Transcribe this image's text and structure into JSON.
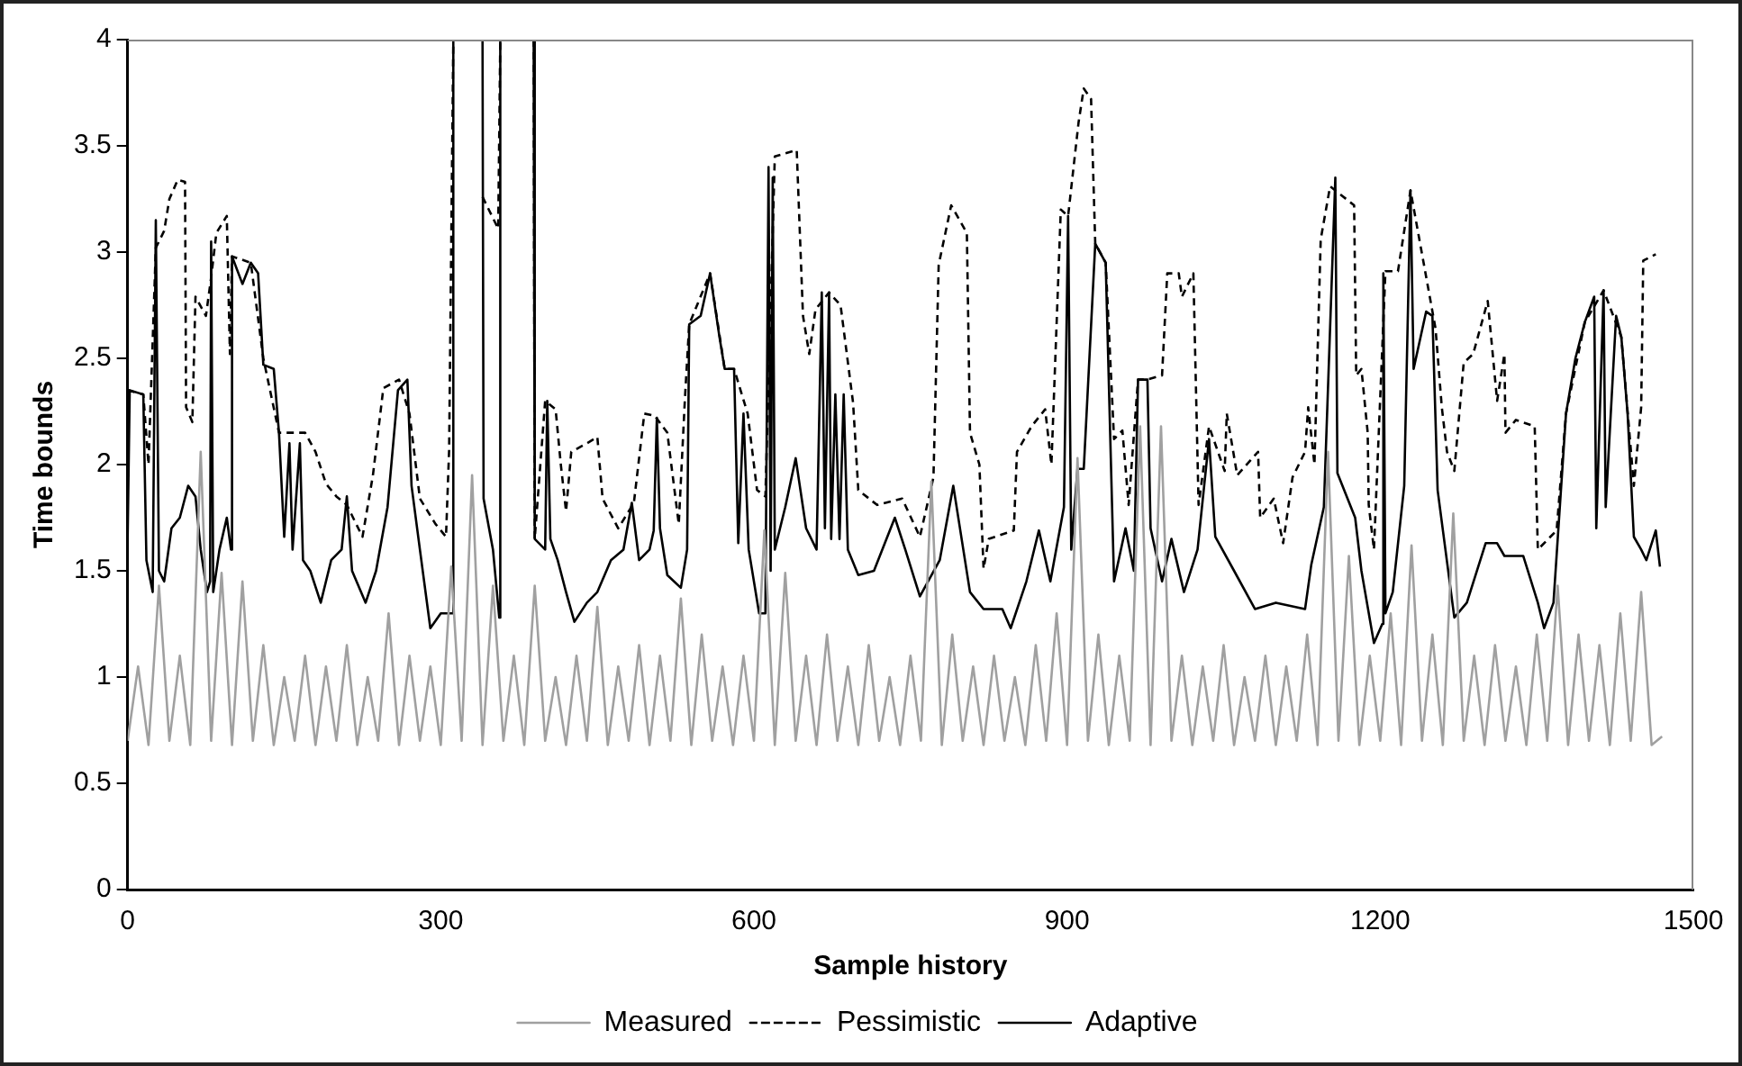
{
  "chart_data": {
    "type": "line",
    "xlabel": "Sample history",
    "ylabel": "Time bounds",
    "xlim": [
      0,
      1500
    ],
    "xticks": [
      0,
      300,
      600,
      900,
      1200,
      1500
    ],
    "ylim": [
      0,
      4
    ],
    "yticks": [
      0,
      0.5,
      1,
      1.5,
      2,
      2.5,
      3,
      3.5,
      4
    ],
    "grid": false,
    "legend": "bottom",
    "marker": "none",
    "series": [
      {
        "name": "Measured",
        "color": "#a0a0a0",
        "line_style": "solid",
        "x": [
          0,
          10,
          20,
          30,
          40,
          50,
          60,
          70,
          80,
          90,
          100,
          110,
          120,
          130,
          140,
          150,
          160,
          170,
          180,
          190,
          200,
          210,
          220,
          230,
          240,
          250,
          260,
          270,
          280,
          290,
          300,
          310,
          320,
          330,
          340,
          350,
          360,
          370,
          380,
          390,
          400,
          410,
          420,
          430,
          440,
          450,
          460,
          470,
          480,
          490,
          500,
          510,
          520,
          530,
          540,
          550,
          560,
          570,
          580,
          590,
          600,
          610,
          620,
          630,
          640,
          650,
          660,
          670,
          680,
          690,
          700,
          710,
          720,
          730,
          740,
          750,
          760,
          770,
          780,
          790,
          800,
          810,
          820,
          830,
          840,
          850,
          860,
          870,
          880,
          890,
          900,
          910,
          920,
          930,
          940,
          950,
          960,
          970,
          980,
          990,
          1000,
          1010,
          1020,
          1030,
          1040,
          1050,
          1060,
          1070,
          1080,
          1090,
          1100,
          1110,
          1120,
          1130,
          1140,
          1150,
          1160,
          1170,
          1180,
          1190,
          1200,
          1210,
          1220,
          1230,
          1240,
          1250,
          1260,
          1270,
          1280,
          1290,
          1300,
          1310,
          1320,
          1330,
          1340,
          1350,
          1360,
          1370,
          1380,
          1390,
          1400,
          1410,
          1420,
          1430,
          1440,
          1450,
          1460,
          1470
        ],
        "values": [
          0.7,
          1.05,
          0.68,
          1.43,
          0.7,
          1.1,
          0.68,
          2.06,
          0.7,
          1.49,
          0.68,
          1.45,
          0.7,
          1.15,
          0.68,
          1.0,
          0.7,
          1.1,
          0.68,
          1.05,
          0.7,
          1.15,
          0.68,
          1.0,
          0.7,
          1.3,
          0.68,
          1.1,
          0.7,
          1.05,
          0.68,
          1.52,
          0.7,
          1.95,
          0.68,
          1.43,
          0.7,
          1.1,
          0.68,
          1.43,
          0.7,
          1.0,
          0.68,
          1.1,
          0.7,
          1.33,
          0.68,
          1.05,
          0.7,
          1.15,
          0.68,
          1.1,
          0.7,
          1.37,
          0.68,
          1.2,
          0.7,
          1.05,
          0.68,
          1.1,
          0.7,
          1.69,
          0.68,
          1.49,
          0.7,
          1.1,
          0.68,
          1.2,
          0.7,
          1.05,
          0.68,
          1.15,
          0.7,
          1.0,
          0.68,
          1.1,
          0.7,
          1.92,
          0.68,
          1.2,
          0.7,
          1.05,
          0.68,
          1.1,
          0.7,
          1.0,
          0.68,
          1.15,
          0.7,
          1.3,
          0.68,
          2.03,
          0.7,
          1.2,
          0.68,
          1.1,
          0.7,
          2.18,
          0.68,
          2.18,
          0.7,
          1.1,
          0.68,
          1.05,
          0.7,
          1.15,
          0.68,
          1.0,
          0.7,
          1.1,
          0.68,
          1.05,
          0.7,
          1.2,
          0.68,
          2.06,
          0.7,
          1.57,
          0.68,
          1.1,
          0.7,
          1.3,
          0.68,
          1.62,
          0.7,
          1.2,
          0.68,
          1.77,
          0.7,
          1.1,
          0.68,
          1.15,
          0.7,
          1.05,
          0.68,
          1.2,
          0.7,
          1.43,
          0.68,
          1.2,
          0.7,
          1.15,
          0.68,
          1.3,
          0.7,
          1.4,
          0.68,
          0.72
        ]
      },
      {
        "name": "Pessimistic",
        "color": "#000000",
        "line_style": "dashed",
        "x": [
          0,
          15,
          20,
          27,
          35,
          40,
          48,
          55,
          56,
          62,
          65,
          75,
          80,
          85,
          95,
          98,
          100,
          118,
          130,
          145,
          160,
          170,
          180,
          190,
          200,
          210,
          225,
          235,
          245,
          260,
          270,
          280,
          295,
          305,
          308,
          312,
          313,
          339,
          340,
          355,
          357,
          358,
          388,
          389,
          390,
          400,
          410,
          415,
          420,
          425,
          440,
          450,
          455,
          470,
          485,
          495,
          505,
          517,
          528,
          534,
          538,
          558,
          572,
          581,
          594,
          603,
          611,
          620,
          641,
          647,
          653,
          659,
          672,
          683,
          695,
          700,
          718,
          742,
          759,
          772,
          777,
          789,
          804,
          807,
          816,
          820,
          825,
          849,
          852,
          866,
          879,
          885,
          894,
          901,
          911,
          916,
          923,
          927,
          937,
          945,
          953,
          959,
          968,
          977,
          991,
          996,
          1007,
          1010,
          1021,
          1026,
          1036,
          1051,
          1053,
          1063,
          1083,
          1085,
          1098,
          1107,
          1116,
          1128,
          1131,
          1137,
          1143,
          1152,
          1175,
          1177,
          1182,
          1188,
          1189,
          1194,
          1205,
          1217,
          1229,
          1253,
          1259,
          1264,
          1271,
          1280,
          1289,
          1303,
          1312,
          1319,
          1320,
          1330,
          1348,
          1351,
          1369,
          1378,
          1396,
          1414,
          1431,
          1443,
          1450,
          1452,
          1464
        ],
        "values": [
          2.35,
          2.33,
          2.0,
          3.02,
          3.1,
          3.25,
          3.34,
          3.33,
          2.27,
          2.2,
          2.79,
          2.7,
          2.88,
          3.09,
          3.17,
          2.52,
          2.98,
          2.95,
          2.5,
          2.15,
          2.15,
          2.15,
          2.06,
          1.91,
          1.85,
          1.81,
          1.66,
          1.95,
          2.36,
          2.4,
          2.24,
          1.84,
          1.72,
          1.66,
          2.07,
          4,
          null,
          null,
          3.26,
          3.11,
          4,
          null,
          null,
          4,
          1.65,
          2.3,
          2.26,
          2.0,
          1.78,
          2.06,
          2.1,
          2.13,
          1.84,
          1.7,
          1.82,
          2.24,
          2.23,
          2.15,
          1.72,
          2.32,
          2.66,
          2.9,
          2.45,
          2.45,
          2.24,
          1.88,
          1.85,
          3.45,
          3.48,
          2.7,
          2.52,
          2.73,
          2.81,
          2.75,
          2.29,
          1.88,
          1.81,
          1.84,
          1.66,
          1.94,
          2.94,
          3.22,
          3.09,
          2.15,
          2.0,
          1.51,
          1.65,
          1.69,
          2.06,
          2.18,
          2.26,
          2.0,
          3.2,
          3.17,
          3.61,
          3.77,
          3.72,
          3.04,
          2.95,
          2.12,
          2.16,
          1.81,
          2.4,
          2.4,
          2.42,
          2.9,
          2.9,
          2.79,
          2.9,
          1.81,
          2.18,
          1.97,
          2.24,
          1.95,
          2.06,
          1.75,
          1.84,
          1.63,
          1.94,
          2.06,
          2.27,
          2.0,
          3.06,
          3.31,
          3.22,
          2.42,
          2.45,
          2.15,
          1.81,
          1.6,
          2.91,
          2.91,
          3.29,
          2.64,
          2.27,
          2.06,
          1.97,
          2.48,
          2.52,
          2.77,
          2.3,
          2.52,
          2.15,
          2.21,
          2.18,
          1.6,
          1.69,
          2.24,
          2.67,
          2.82,
          2.6,
          1.9,
          2.27,
          2.96,
          2.99
        ]
      },
      {
        "name": "Adaptive",
        "color": "#000000",
        "line_style": "solid",
        "x": [
          0,
          2,
          15,
          18,
          24,
          27,
          30,
          35,
          42,
          50,
          58,
          65,
          70,
          76,
          79,
          80,
          82,
          88,
          95,
          99,
          100,
          110,
          118,
          125,
          130,
          140,
          145,
          150,
          155,
          158,
          165,
          168,
          175,
          185,
          195,
          205,
          210,
          215,
          228,
          238,
          249,
          259,
          268,
          272,
          280,
          290,
          300,
          311,
          312,
          313,
          339,
          340,
          341,
          350,
          356,
          357,
          358,
          388,
          389,
          390,
          400,
          402,
          405,
          412,
          420,
          428,
          440,
          450,
          463,
          475,
          483,
          490,
          500,
          504,
          507,
          510,
          517,
          530,
          536,
          538,
          549,
          558,
          567,
          572,
          581,
          585,
          590,
          595,
          605,
          611,
          614,
          616,
          618,
          620,
          630,
          640,
          650,
          660,
          665,
          668,
          672,
          674,
          678,
          682,
          686,
          690,
          700,
          715,
          735,
          745,
          759,
          778,
          791,
          807,
          820,
          838,
          846,
          861,
          873,
          884,
          897,
          901,
          904,
          910,
          916,
          927,
          937,
          945,
          956,
          964,
          968,
          977,
          980,
          991,
          1000,
          1012,
          1025,
          1036,
          1042,
          1060,
          1080,
          1100,
          1128,
          1134,
          1146,
          1157,
          1159,
          1176,
          1182,
          1194,
          1202,
          1203,
          1205,
          1212,
          1223,
          1229,
          1232,
          1244,
          1250,
          1255,
          1271,
          1283,
          1301,
          1312,
          1319,
          1337,
          1351,
          1357,
          1366,
          1378,
          1387,
          1396,
          1405,
          1407,
          1414,
          1416,
          1426,
          1431,
          1437,
          1443,
          1450,
          1455,
          1464,
          1468
        ],
        "values": [
          1.65,
          2.35,
          2.33,
          1.55,
          1.4,
          3.15,
          1.5,
          1.45,
          1.7,
          1.75,
          1.9,
          1.85,
          1.6,
          1.4,
          1.45,
          3.05,
          1.4,
          1.6,
          1.75,
          1.6,
          2.98,
          2.85,
          2.95,
          2.9,
          2.47,
          2.45,
          2.15,
          1.66,
          2.1,
          1.6,
          2.1,
          1.55,
          1.5,
          1.35,
          1.55,
          1.6,
          1.85,
          1.5,
          1.35,
          1.5,
          1.8,
          2.35,
          2.4,
          1.9,
          1.6,
          1.23,
          1.3,
          1.3,
          4,
          null,
          null,
          4,
          1.84,
          1.6,
          1.28,
          4,
          null,
          null,
          4,
          1.65,
          1.6,
          2.3,
          1.65,
          1.55,
          1.4,
          1.26,
          1.35,
          1.4,
          1.55,
          1.6,
          1.82,
          1.55,
          1.6,
          1.69,
          2.22,
          1.7,
          1.48,
          1.42,
          1.6,
          2.66,
          2.7,
          2.9,
          2.6,
          2.45,
          2.45,
          1.63,
          2.24,
          1.6,
          1.3,
          1.3,
          3.4,
          1.5,
          3.35,
          1.6,
          1.8,
          2.03,
          1.7,
          1.6,
          2.81,
          1.7,
          2.81,
          1.65,
          2.33,
          1.65,
          2.33,
          1.6,
          1.48,
          1.5,
          1.75,
          1.6,
          1.38,
          1.55,
          1.9,
          1.4,
          1.32,
          1.32,
          1.23,
          1.45,
          1.69,
          1.45,
          1.8,
          3.17,
          1.6,
          1.98,
          1.98,
          3.04,
          2.95,
          1.45,
          1.7,
          1.5,
          2.4,
          2.4,
          1.7,
          1.45,
          1.65,
          1.4,
          1.6,
          2.12,
          1.66,
          1.5,
          1.32,
          1.35,
          1.32,
          1.53,
          1.8,
          3.35,
          1.96,
          1.75,
          1.5,
          1.16,
          1.25,
          2.9,
          1.3,
          1.4,
          1.9,
          3.29,
          2.45,
          2.72,
          2.7,
          1.88,
          1.28,
          1.35,
          1.63,
          1.63,
          1.57,
          1.57,
          1.35,
          1.23,
          1.35,
          2.24,
          2.5,
          2.67,
          2.79,
          1.7,
          2.82,
          1.8,
          2.7,
          2.6,
          2.24,
          1.66,
          1.6,
          1.55,
          1.69,
          1.52
        ]
      }
    ]
  }
}
